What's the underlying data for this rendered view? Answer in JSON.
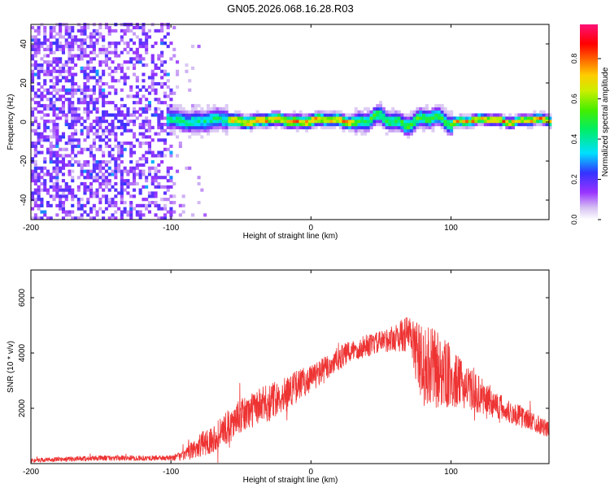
{
  "title": "GN05.2026.068.16.28.R03",
  "chart_data": [
    {
      "type": "heatmap",
      "xlabel": "Height of straight line (km)",
      "ylabel": "Frequency (Hz)",
      "xlim": [
        -200,
        170
      ],
      "ylim": [
        -50,
        50
      ],
      "xticks": [
        -200,
        -100,
        0,
        100
      ],
      "yticks": [
        -40,
        -20,
        0,
        20,
        40
      ],
      "colorbar": {
        "label": "Normalized spectral amplitude",
        "range": [
          0,
          0.97
        ],
        "ticks": [
          "0.0",
          "0.2",
          "0.4",
          "0.6",
          "0.8"
        ],
        "colormap": "rainbow (white → violet → blue → cyan → green → yellow → orange → red → pink)"
      },
      "features": {
        "noise_region_x": [
          -200,
          -100
        ],
        "signal_band_center_hz": 0,
        "signal_band_halfwidth_hz": [
          4,
          8
        ],
        "signal_start_x": -105
      }
    },
    {
      "type": "line",
      "xlabel": "Height of straight line (km)",
      "ylabel": "SNR (10 * v/v)",
      "xlim": [
        -200,
        170
      ],
      "ylim": [
        0,
        7000
      ],
      "xticks": [
        -200,
        -100,
        0,
        100
      ],
      "yticks": [
        2000,
        4000,
        6000
      ],
      "color": "#ee3333",
      "envelope": {
        "x": [
          -200,
          -150,
          -100,
          -90,
          -80,
          -70,
          -60,
          -50,
          -40,
          -30,
          -20,
          -10,
          0,
          10,
          20,
          30,
          40,
          50,
          60,
          70,
          80,
          90,
          100,
          110,
          120,
          130,
          140,
          150,
          160,
          170
        ],
        "mean": [
          120,
          200,
          200,
          300,
          650,
          900,
          1300,
          1700,
          2000,
          2200,
          2500,
          2800,
          3100,
          3400,
          3800,
          4100,
          4250,
          4400,
          4550,
          4700,
          3500,
          3400,
          3100,
          2800,
          2500,
          2200,
          1900,
          1700,
          1500,
          1200
        ],
        "spread": [
          80,
          100,
          100,
          200,
          450,
          500,
          600,
          650,
          650,
          700,
          600,
          600,
          500,
          500,
          450,
          400,
          400,
          400,
          500,
          700,
          1500,
          1500,
          1100,
          800,
          700,
          550,
          450,
          400,
          350,
          300
        ]
      }
    }
  ]
}
